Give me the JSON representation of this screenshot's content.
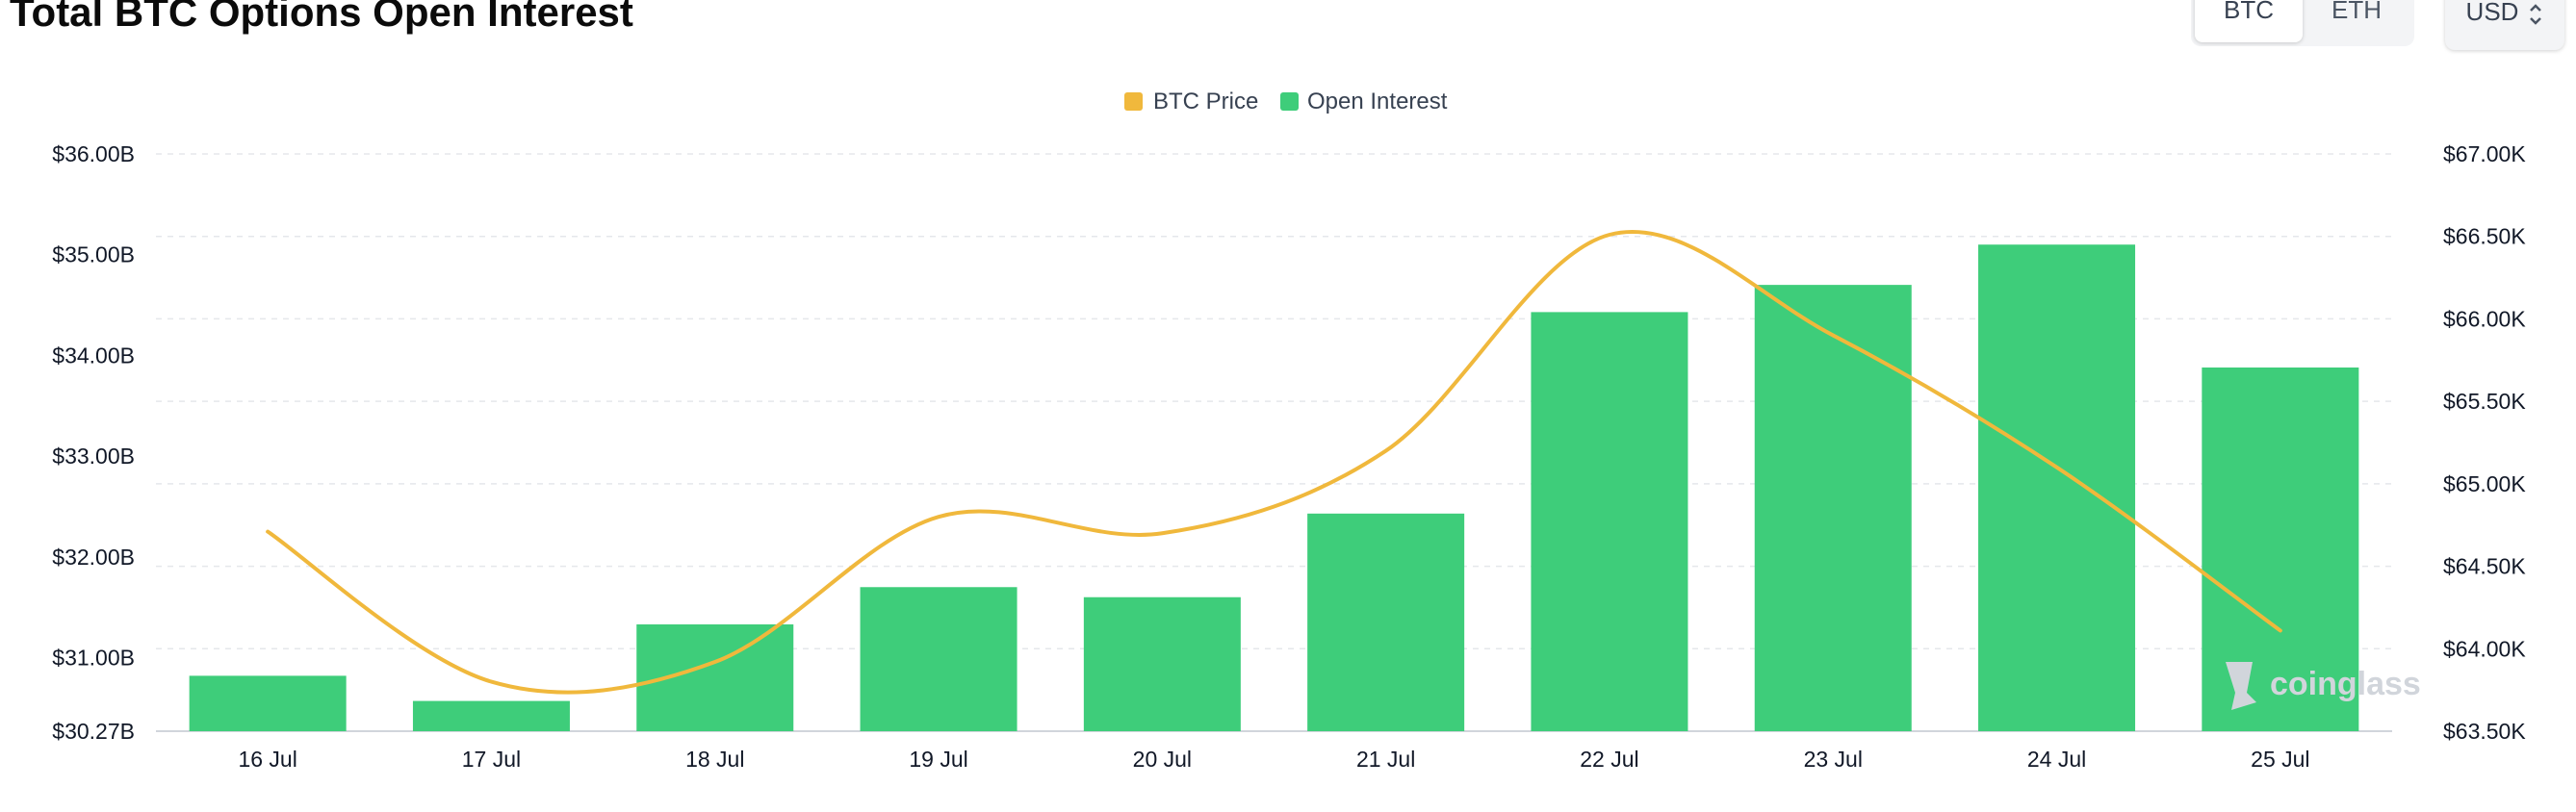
{
  "header": {
    "title": "Total BTC Options Open Interest",
    "asset_tabs": [
      {
        "label": "BTC",
        "active": true
      },
      {
        "label": "ETH",
        "active": false
      }
    ],
    "currency": "USD"
  },
  "watermark": "coinglass",
  "colors": {
    "open_interest": "#3ecd7a",
    "btc_price": "#f0b83c",
    "grid": "#e5e7eb"
  },
  "chart_data": {
    "type": "bar",
    "title": "Total BTC Options Open Interest",
    "categories": [
      "16 Jul",
      "17 Jul",
      "18 Jul",
      "19 Jul",
      "20 Jul",
      "21 Jul",
      "22 Jul",
      "23 Jul",
      "24 Jul",
      "25 Jul"
    ],
    "legend": {
      "placement": "top-center",
      "entries": [
        {
          "name": "BTC Price",
          "color": "#f0b83c"
        },
        {
          "name": "Open Interest",
          "color": "#3ecd7a"
        }
      ]
    },
    "series": [
      {
        "name": "Open Interest",
        "type": "bar",
        "axis": "left",
        "values": [
          30.82,
          30.57,
          31.33,
          31.7,
          31.6,
          32.43,
          34.43,
          34.7,
          35.1,
          33.88
        ]
      },
      {
        "name": "BTC Price",
        "type": "line",
        "axis": "right",
        "values": [
          64.71,
          63.8,
          63.92,
          64.8,
          64.7,
          65.2,
          66.51,
          65.9,
          65.1,
          64.11
        ]
      }
    ],
    "y_left": {
      "ticks": [
        30.27,
        31.0,
        32.0,
        33.0,
        34.0,
        35.0,
        36.0
      ],
      "tick_labels": [
        "$30.27B",
        "$31.00B",
        "$32.00B",
        "$33.00B",
        "$34.00B",
        "$35.00B",
        "$36.00B"
      ],
      "ylim": [
        30.27,
        36.0
      ]
    },
    "y_right": {
      "ticks": [
        63.5,
        64.0,
        64.5,
        65.0,
        65.5,
        66.0,
        66.5,
        67.0
      ],
      "tick_labels": [
        "$63.50K",
        "$64.00K",
        "$64.50K",
        "$65.00K",
        "$65.50K",
        "$66.00K",
        "$66.50K",
        "$67.00K"
      ],
      "ylim": [
        63.5,
        67.0
      ]
    },
    "grid": true
  }
}
